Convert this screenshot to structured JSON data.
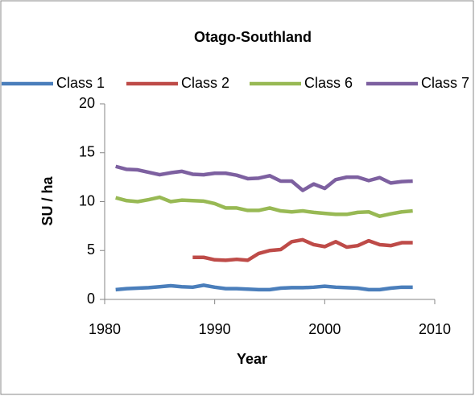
{
  "chart_data": {
    "type": "line",
    "title": "Otago-Southland",
    "x_label": "Year",
    "y_label": "SU / ha",
    "x": [
      1981,
      1982,
      1983,
      1984,
      1985,
      1986,
      1987,
      1988,
      1989,
      1990,
      1991,
      1992,
      1993,
      1994,
      1995,
      1996,
      1997,
      1998,
      1999,
      2000,
      2001,
      2002,
      2003,
      2004,
      2005,
      2006,
      2007,
      2008
    ],
    "series": [
      {
        "name": "Class 1",
        "color": "#4a7ebb",
        "values": [
          1.0,
          1.1,
          1.15,
          1.2,
          1.3,
          1.4,
          1.3,
          1.25,
          1.45,
          1.25,
          1.1,
          1.1,
          1.05,
          1.0,
          1.0,
          1.15,
          1.2,
          1.2,
          1.25,
          1.35,
          1.25,
          1.2,
          1.15,
          1.0,
          1.0,
          1.15,
          1.25,
          1.25
        ]
      },
      {
        "name": "Class 2",
        "color": "#be4b48",
        "values": [
          null,
          null,
          null,
          null,
          null,
          null,
          null,
          4.3,
          4.3,
          4.05,
          4.0,
          4.1,
          4.0,
          4.7,
          5.0,
          5.1,
          5.9,
          6.1,
          5.6,
          5.4,
          5.9,
          5.35,
          5.5,
          6.0,
          5.6,
          5.5,
          5.8,
          5.8
        ]
      },
      {
        "name": "Class 6",
        "color": "#98b954",
        "values": [
          10.4,
          10.1,
          10.0,
          10.2,
          10.45,
          10.0,
          10.15,
          10.1,
          10.05,
          9.8,
          9.35,
          9.35,
          9.1,
          9.1,
          9.35,
          9.05,
          8.95,
          9.05,
          8.9,
          8.8,
          8.7,
          8.7,
          8.9,
          8.95,
          8.5,
          8.75,
          8.95,
          9.05
        ]
      },
      {
        "name": "Class 7",
        "color": "#7d60a0",
        "values": [
          13.6,
          13.3,
          13.25,
          13.0,
          12.75,
          12.95,
          13.1,
          12.8,
          12.75,
          12.9,
          12.9,
          12.7,
          12.35,
          12.4,
          12.65,
          12.1,
          12.1,
          11.15,
          11.8,
          11.35,
          12.25,
          12.5,
          12.5,
          12.15,
          12.45,
          11.9,
          12.05,
          12.1
        ]
      }
    ],
    "xlim": [
      1980,
      2010
    ],
    "xticks": [
      1980,
      1990,
      2000,
      2010
    ],
    "ylim": [
      0,
      20
    ],
    "yticks": [
      0,
      5,
      10,
      15,
      20
    ],
    "grid": false,
    "legend": "top"
  }
}
